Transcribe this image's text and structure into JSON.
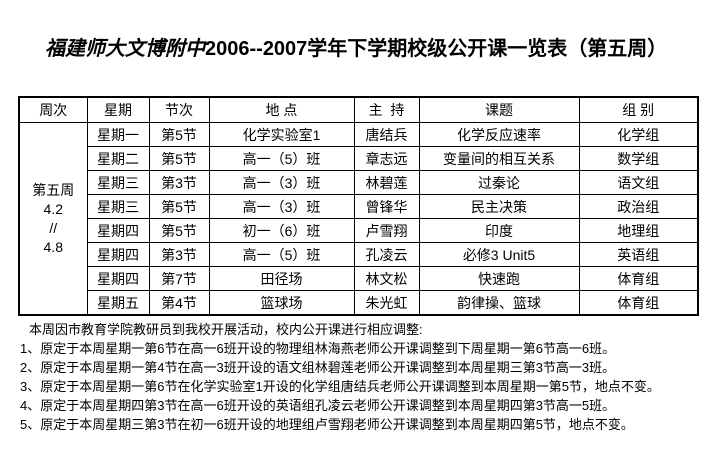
{
  "title": {
    "school": "福建师大文博附中",
    "rest": "2006--2007学年下学期校级公开课一览表（第五周）"
  },
  "table": {
    "headers": [
      "周次",
      "星期",
      "节次",
      "地 点",
      "主  持",
      "课题",
      "组 别"
    ],
    "week_cell": {
      "lines": [
        "第五周",
        "4.2",
        "//",
        "4.8"
      ]
    },
    "rows": [
      {
        "day": "星期一",
        "period": "第5节",
        "location": "化学实验室1",
        "host": "唐结兵",
        "topic": "化学反应速率",
        "group": "化学组"
      },
      {
        "day": "星期二",
        "period": "第5节",
        "location": "高一（5）班",
        "host": "章志远",
        "topic": "变量间的相互关系",
        "group": "数学组"
      },
      {
        "day": "星期三",
        "period": "第3节",
        "location": "高一（3）班",
        "host": "林碧莲",
        "topic": "过秦论",
        "group": "语文组"
      },
      {
        "day": "星期三",
        "period": "第5节",
        "location": "高一（3）班",
        "host": "曾锋华",
        "topic": "民主决策",
        "group": "政治组"
      },
      {
        "day": "星期四",
        "period": "第5节",
        "location": "初一（6）班",
        "host": "卢雪翔",
        "topic": "印度",
        "group": "地理组"
      },
      {
        "day": "星期四",
        "period": "第3节",
        "location": "高一（5）班",
        "host": "孔凌云",
        "topic": "必修3 Unit5",
        "group": "英语组"
      },
      {
        "day": "星期四",
        "period": "第7节",
        "location": "田径场",
        "host": "林文松",
        "topic": "快速跑",
        "group": "体育组"
      },
      {
        "day": "星期五",
        "period": "第4节",
        "location": "篮球场",
        "host": "朱光虹",
        "topic": "韵律操、篮球",
        "group": "体育组"
      }
    ]
  },
  "notes": {
    "intro": "本周因市教育学院教研员到我校开展活动，校内公开课进行相应调整:",
    "items": [
      "1、原定于本周星期一第6节在高一6班开设的物理组林海燕老师公开课调整到下周星期一第6节高一6班。",
      "2、原定于本周星期一第4节在高一3班开设的语文组林碧莲老师公开课调整到本周星期三第3节高一3班。",
      "3、原定于本周星期一第6节在化学实验室1开设的化学组唐结兵老师公开课调整到本周星期一第5节，地点不变。",
      "4、原定于本周星期四第3节在高一6班开设的英语组孔凌云老师公开课调整到本周星期四第3节高一5班。",
      "5、原定于本周星期三第3节在初一6班开设的地理组卢雪翔老师公开课调整到本周星期四第5节，地点不变。"
    ]
  }
}
